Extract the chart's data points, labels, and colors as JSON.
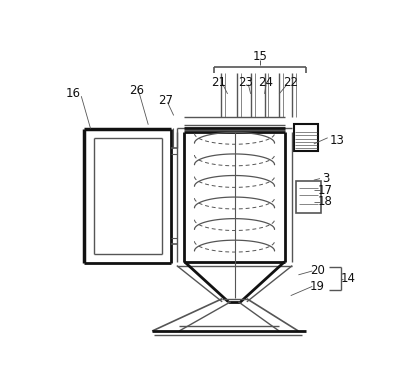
{
  "background_color": "#ffffff",
  "line_color": "#555555",
  "line_color_dark": "#111111",
  "fig_width": 4.08,
  "fig_height": 3.91,
  "dpi": 100
}
